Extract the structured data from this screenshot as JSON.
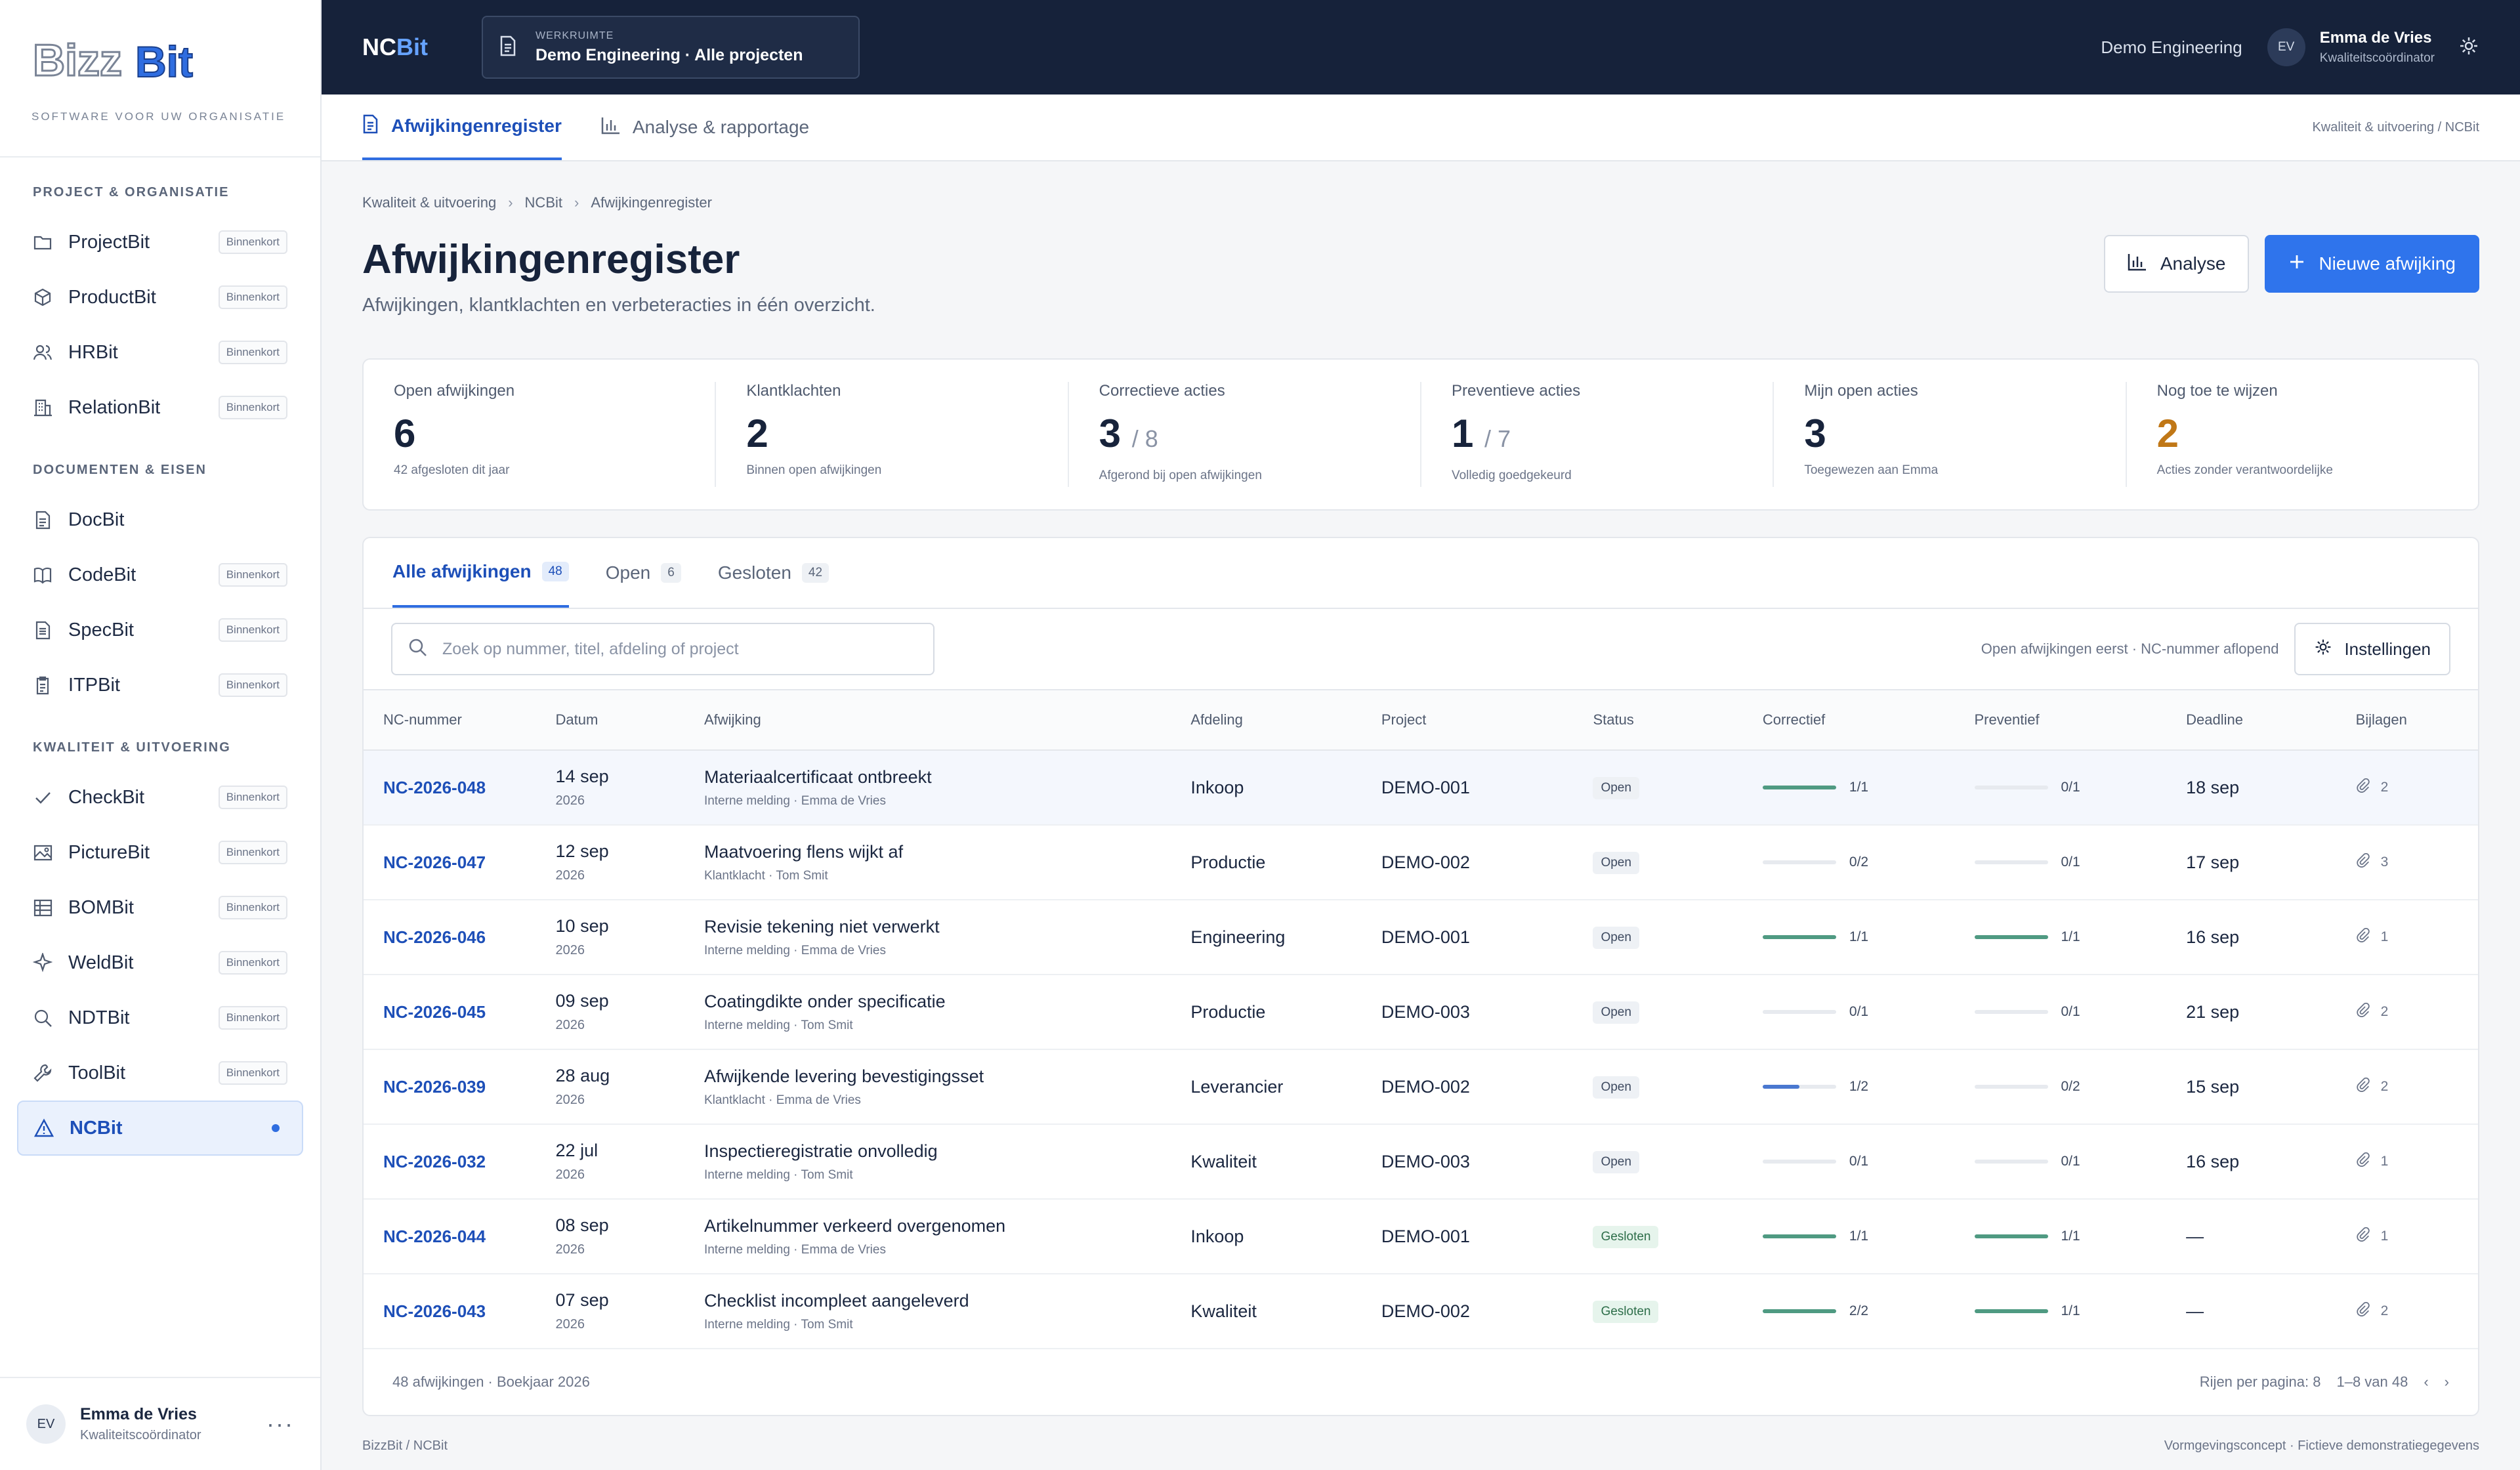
{
  "sidebar": {
    "logo_text": "BizzBit",
    "tagline": "SOFTWARE VOOR UW ORGANISATIE",
    "sections": [
      {
        "title": "PROJECT & ORGANISATIE",
        "items": [
          {
            "label": "ProjectBit",
            "badge": "Binnenkort",
            "icon": "folder-icon"
          },
          {
            "label": "ProductBit",
            "badge": "Binnenkort",
            "icon": "box-icon"
          },
          {
            "label": "HRBit",
            "badge": "Binnenkort",
            "icon": "people-icon"
          },
          {
            "label": "RelationBit",
            "badge": "Binnenkort",
            "icon": "building-icon"
          }
        ]
      },
      {
        "title": "DOCUMENTEN & EISEN",
        "items": [
          {
            "label": "DocBit",
            "badge": "",
            "icon": "document-icon"
          },
          {
            "label": "CodeBit",
            "badge": "Binnenkort",
            "icon": "book-icon"
          },
          {
            "label": "SpecBit",
            "badge": "Binnenkort",
            "icon": "spec-icon"
          },
          {
            "label": "ITPBit",
            "badge": "Binnenkort",
            "icon": "clipboard-icon"
          }
        ]
      },
      {
        "title": "KWALITEIT & UITVOERING",
        "items": [
          {
            "label": "CheckBit",
            "badge": "Binnenkort",
            "icon": "check-icon"
          },
          {
            "label": "PictureBit",
            "badge": "Binnenkort",
            "icon": "image-icon"
          },
          {
            "label": "BOMBit",
            "badge": "Binnenkort",
            "icon": "grid-icon"
          },
          {
            "label": "WeldBit",
            "badge": "Binnenkort",
            "icon": "spark-icon"
          },
          {
            "label": "NDTBit",
            "badge": "Binnenkort",
            "icon": "magnifier-icon"
          },
          {
            "label": "ToolBit",
            "badge": "Binnenkort",
            "icon": "wrench-icon"
          },
          {
            "label": "NCBit",
            "badge": "",
            "icon": "warning-icon",
            "active": true
          }
        ]
      }
    ],
    "user": {
      "initials": "EV",
      "name": "Emma de Vries",
      "role": "Kwaliteitscoördinator"
    }
  },
  "topbar": {
    "brand_a": "NC",
    "brand_b": "Bit",
    "workspace_caption": "WERKRUIMTE",
    "workspace_value": "Demo Engineering · Alle projecten",
    "org": "Demo Engineering",
    "user_initials": "EV",
    "user_name": "Emma de Vries",
    "user_role": "Kwaliteitscoördinator"
  },
  "subnav": {
    "tabs": [
      {
        "label": "Afwijkingenregister"
      },
      {
        "label": "Analyse & rapportage"
      }
    ],
    "crumb": "Kwaliteit & uitvoering / NCBit"
  },
  "breadcrumb": [
    "Kwaliteit & uitvoering",
    "NCBit",
    "Afwijkingenregister"
  ],
  "header": {
    "title": "Afwijkingenregister",
    "subtitle": "Afwijkingen, klantklachten en verbeteracties in één overzicht.",
    "analyse_btn": "Analyse",
    "new_btn": "Nieuwe afwijking"
  },
  "kpis": [
    {
      "label": "Open afwijkingen",
      "value": "6",
      "den": "",
      "hint": "42 afgesloten dit jaar"
    },
    {
      "label": "Klantklachten",
      "value": "2",
      "den": "",
      "hint": "Binnen open afwijkingen"
    },
    {
      "label": "Correctieve acties",
      "value": "3",
      "den": "/ 8",
      "hint": "Afgerond bij open afwijkingen"
    },
    {
      "label": "Preventieve acties",
      "value": "1",
      "den": "/ 7",
      "hint": "Volledig goedgekeurd"
    },
    {
      "label": "Mijn open acties",
      "value": "3",
      "den": "",
      "hint": "Toegewezen aan Emma"
    },
    {
      "label": "Nog toe te wijzen",
      "value": "2",
      "den": "",
      "hint": "Acties zonder verantwoordelijke"
    }
  ],
  "tabs": [
    {
      "label": "Alle afwijkingen",
      "count": "48"
    },
    {
      "label": "Open",
      "count": "6"
    },
    {
      "label": "Gesloten",
      "count": "42"
    }
  ],
  "search": {
    "placeholder": "Zoek op nummer, titel, afdeling of project"
  },
  "sort_text": "Open afwijkingen eerst · NC-nummer aflopend",
  "settings_btn": "Instellingen",
  "table": {
    "columns": [
      "NC-nummer",
      "Datum",
      "Afwijking",
      "Afdeling",
      "Project",
      "Status",
      "Correctief",
      "Preventief",
      "Deadline",
      "Bijlagen"
    ],
    "rows": [
      {
        "nc": "NC-2026-048",
        "date": "14 sep",
        "year": "2026",
        "title": "Materiaalcertificaat ontbreekt",
        "meta": "Interne melding · Emma de Vries",
        "dept": "Inkoop",
        "project": "DEMO-001",
        "status": "Open",
        "corr": "1/1",
        "corr_pct": 1.0,
        "prev": "0/1",
        "prev_pct": 0.0,
        "deadline": "18 sep",
        "attach": "2"
      },
      {
        "nc": "NC-2026-047",
        "date": "12 sep",
        "year": "2026",
        "title": "Maatvoering flens wijkt af",
        "meta": "Klantklacht · Tom Smit",
        "dept": "Productie",
        "project": "DEMO-002",
        "status": "Open",
        "corr": "0/2",
        "corr_pct": 0.0,
        "prev": "0/1",
        "prev_pct": 0.0,
        "deadline": "17 sep",
        "attach": "3"
      },
      {
        "nc": "NC-2026-046",
        "date": "10 sep",
        "year": "2026",
        "title": "Revisie tekening niet verwerkt",
        "meta": "Interne melding · Emma de Vries",
        "dept": "Engineering",
        "project": "DEMO-001",
        "status": "Open",
        "corr": "1/1",
        "corr_pct": 1.0,
        "prev": "1/1",
        "prev_pct": 1.0,
        "deadline": "16 sep",
        "attach": "1"
      },
      {
        "nc": "NC-2026-045",
        "date": "09 sep",
        "year": "2026",
        "title": "Coatingdikte onder specificatie",
        "meta": "Interne melding · Tom Smit",
        "dept": "Productie",
        "project": "DEMO-003",
        "status": "Open",
        "corr": "0/1",
        "corr_pct": 0.0,
        "prev": "0/1",
        "prev_pct": 0.0,
        "deadline": "21 sep",
        "attach": "2"
      },
      {
        "nc": "NC-2026-039",
        "date": "28 aug",
        "year": "2026",
        "title": "Afwijkende levering bevestigingsset",
        "meta": "Klantklacht · Emma de Vries",
        "dept": "Leverancier",
        "project": "DEMO-002",
        "status": "Open",
        "corr": "1/2",
        "corr_pct": 0.5,
        "prev": "0/2",
        "prev_pct": 0.0,
        "deadline": "15 sep",
        "attach": "2"
      },
      {
        "nc": "NC-2026-032",
        "date": "22 jul",
        "year": "2026",
        "title": "Inspectieregistratie onvolledig",
        "meta": "Interne melding · Tom Smit",
        "dept": "Kwaliteit",
        "project": "DEMO-003",
        "status": "Open",
        "corr": "0/1",
        "corr_pct": 0.0,
        "prev": "0/1",
        "prev_pct": 0.0,
        "deadline": "16 sep",
        "attach": "1"
      },
      {
        "nc": "NC-2026-044",
        "date": "08 sep",
        "year": "2026",
        "title": "Artikelnummer verkeerd overgenomen",
        "meta": "Interne melding · Emma de Vries",
        "dept": "Inkoop",
        "project": "DEMO-001",
        "status": "Gesloten",
        "corr": "1/1",
        "corr_pct": 1.0,
        "prev": "1/1",
        "prev_pct": 1.0,
        "deadline": "—",
        "attach": "1"
      },
      {
        "nc": "NC-2026-043",
        "date": "07 sep",
        "year": "2026",
        "title": "Checklist incompleet aangeleverd",
        "meta": "Interne melding · Tom Smit",
        "dept": "Kwaliteit",
        "project": "DEMO-002",
        "status": "Gesloten",
        "corr": "2/2",
        "corr_pct": 1.0,
        "prev": "1/1",
        "prev_pct": 1.0,
        "deadline": "—",
        "attach": "2"
      }
    ]
  },
  "table_footer": {
    "left": "48 afwijkingen · Boekjaar 2026",
    "rows_per_page": "Rijen per pagina: 8",
    "range": "1–8 van 48",
    "prev": "‹",
    "next": "›"
  },
  "page_footer": {
    "left": "BizzBit / NCBit",
    "right": "Vormgevingsconcept · Fictieve demonstratiegegevens"
  },
  "colors": {
    "accent": "#2f74ec",
    "complete": "#4f9a82",
    "partial": "#4a78d0",
    "orange": "#c07716"
  }
}
